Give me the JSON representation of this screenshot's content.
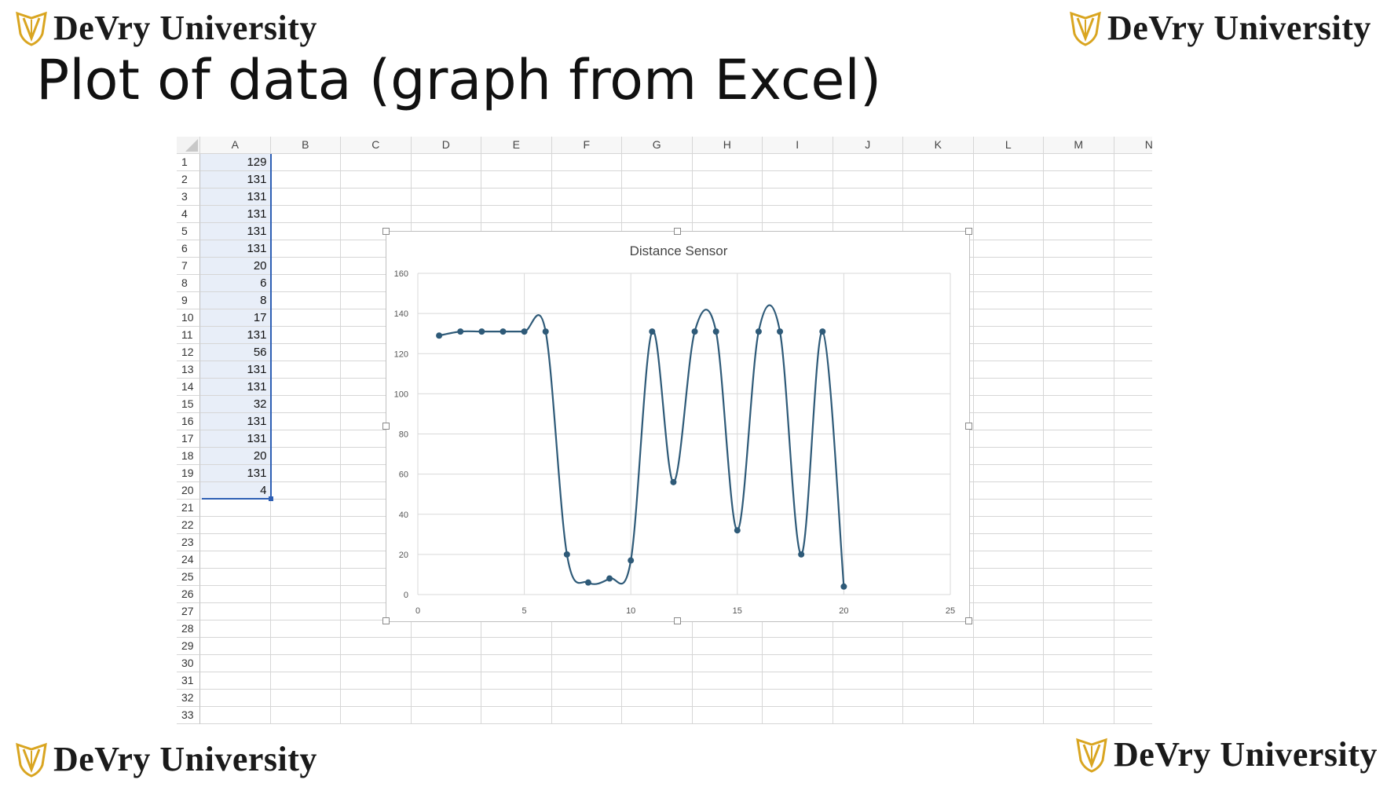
{
  "slide": {
    "title": "Plot of data (graph from Excel)",
    "logo_text": "DeVry University",
    "brand_color": "#d9a520"
  },
  "sheet": {
    "columns": [
      "A",
      "B",
      "C",
      "D",
      "E",
      "F",
      "G",
      "H",
      "I",
      "J",
      "K",
      "L",
      "M",
      "N"
    ],
    "row_numbers": [
      1,
      2,
      3,
      4,
      5,
      6,
      7,
      8,
      9,
      10,
      11,
      12,
      13,
      14,
      15,
      16,
      17,
      18,
      19,
      20,
      21,
      22,
      23,
      24,
      25,
      26,
      27,
      28,
      29,
      30,
      31,
      32,
      33
    ],
    "column_a_values": [
      129,
      131,
      131,
      131,
      131,
      131,
      20,
      6,
      8,
      17,
      131,
      56,
      131,
      131,
      32,
      131,
      131,
      20,
      131,
      4
    ],
    "selection": "A1:A20",
    "selection_color": "#2e5fb4"
  },
  "chart_data": {
    "type": "scatter",
    "style": "smoothed line with markers",
    "title": "Distance Sensor",
    "xlabel": "",
    "ylabel": "",
    "xlim": [
      0,
      25
    ],
    "ylim": [
      0,
      160
    ],
    "x_ticks": [
      0,
      5,
      10,
      15,
      20,
      25
    ],
    "y_ticks": [
      0,
      20,
      40,
      60,
      80,
      100,
      120,
      140,
      160
    ],
    "grid": true,
    "legend": "none",
    "series_color": "#2e5a78",
    "series": [
      {
        "x": [
          1,
          2,
          3,
          4,
          5,
          6,
          7,
          8,
          9,
          10,
          11,
          12,
          13,
          14,
          15,
          16,
          17,
          18,
          19,
          20
        ],
        "y": [
          129,
          131,
          131,
          131,
          131,
          131,
          20,
          6,
          8,
          17,
          131,
          56,
          131,
          131,
          32,
          131,
          131,
          20,
          131,
          4
        ]
      }
    ]
  }
}
